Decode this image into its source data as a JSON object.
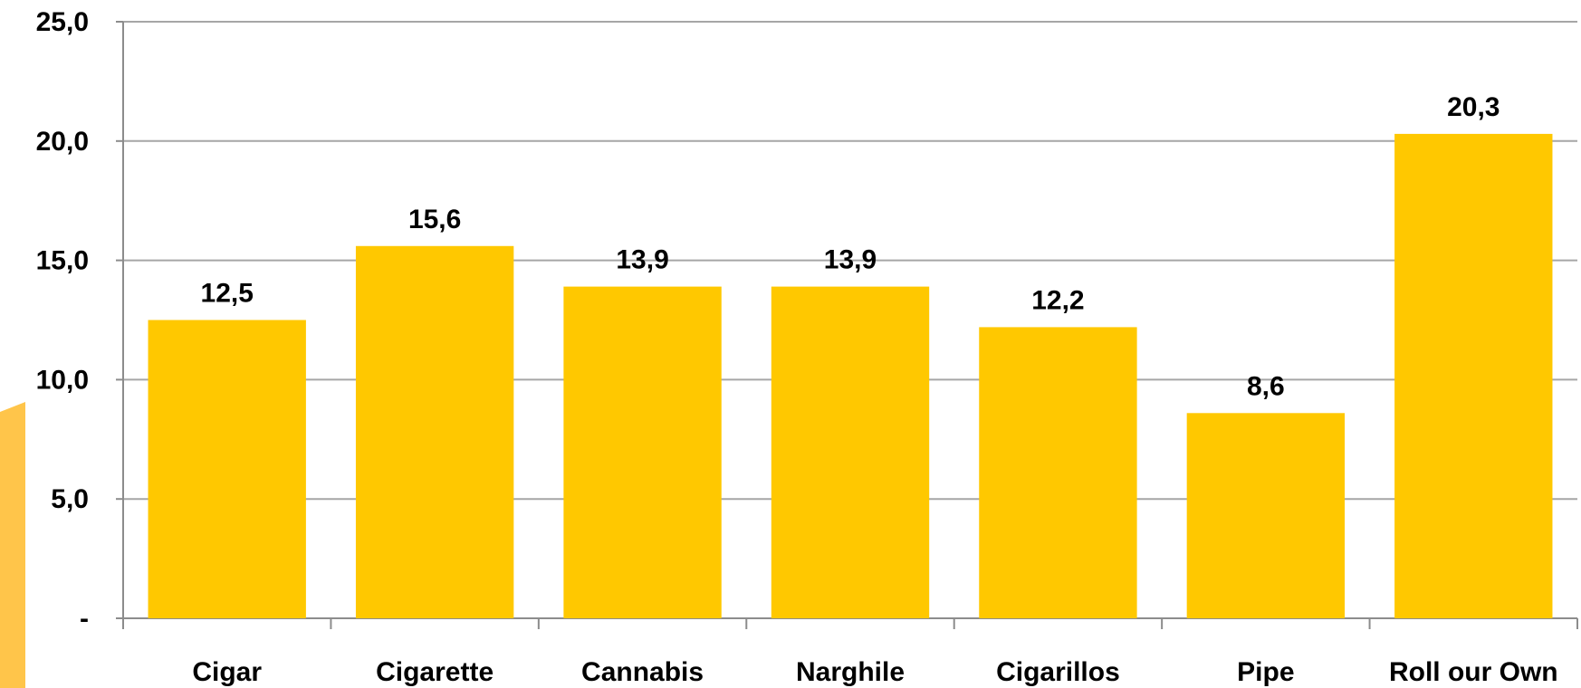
{
  "chart_data": {
    "type": "bar",
    "categories": [
      "Cigar",
      "Cigarette",
      "Cannabis",
      "Narghile",
      "Cigarillos",
      "Pipe",
      "Roll our Own"
    ],
    "values": [
      12.5,
      15.6,
      13.9,
      13.9,
      12.2,
      8.6,
      20.3
    ],
    "data_labels": [
      "12,5",
      "15,6",
      "13,9",
      "13,9",
      "12,2",
      "8,6",
      "20,3"
    ],
    "y_tick_values": [
      0,
      5,
      10,
      15,
      20,
      25
    ],
    "y_tick_labels": [
      "-",
      "5,0",
      "10,0",
      "15,0",
      "20,0",
      "25,0"
    ],
    "ylim": [
      0,
      25
    ],
    "grid": true,
    "legend": "none",
    "colors": {
      "bar": "#FFC800",
      "grid": "#A6A6A6",
      "axis": "#8C8C8C",
      "accent_shape": "#FFC54A"
    }
  }
}
